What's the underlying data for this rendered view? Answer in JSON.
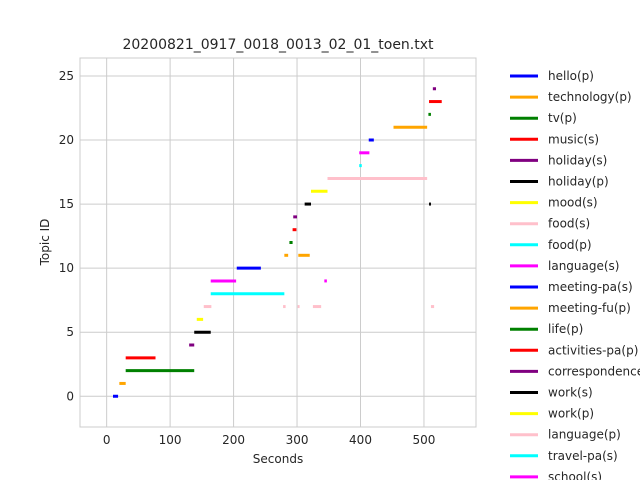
{
  "chart_data": {
    "type": "timeline",
    "title": "20200821_0917_0018_0013_02_01_toen.txt",
    "xlabel": "Seconds",
    "ylabel": "Topic ID",
    "xlim": [
      -42,
      582
    ],
    "ylim": [
      -2.4,
      26.4
    ],
    "xticks": [
      0,
      100,
      200,
      300,
      400,
      500
    ],
    "yticks": [
      0,
      5,
      10,
      15,
      20,
      25
    ],
    "grid": true,
    "legend_position": "right-outside",
    "series": [
      {
        "name": "hello(p)",
        "color": "#0000ff",
        "y": 0,
        "segments": [
          [
            10,
            18
          ]
        ]
      },
      {
        "name": "technology(p)",
        "color": "#ffa500",
        "y": 1,
        "segments": [
          [
            20,
            30
          ]
        ]
      },
      {
        "name": "tv(p)",
        "color": "#008000",
        "y": 2,
        "segments": [
          [
            30,
            138
          ]
        ]
      },
      {
        "name": "music(s)",
        "color": "#ff0000",
        "y": 3,
        "segments": [
          [
            30,
            77
          ]
        ]
      },
      {
        "name": "holiday(s)",
        "color": "#800080",
        "y": 4,
        "segments": [
          [
            130,
            138
          ]
        ]
      },
      {
        "name": "holiday(p)",
        "color": "#000000",
        "y": 5,
        "segments": [
          [
            138,
            164
          ]
        ]
      },
      {
        "name": "mood(s)",
        "color": "#ffff00",
        "y": 6,
        "segments": [
          [
            142,
            152
          ]
        ]
      },
      {
        "name": "food(s)",
        "color": "#ffc0cb",
        "y": 7,
        "segments": [
          [
            153,
            165
          ],
          [
            278,
            282
          ],
          [
            301,
            304
          ],
          [
            325,
            338
          ],
          [
            511,
            516
          ]
        ]
      },
      {
        "name": "food(p)",
        "color": "#00ffff",
        "y": 8,
        "segments": [
          [
            164,
            280
          ]
        ]
      },
      {
        "name": "language(s)",
        "color": "#ff00ff",
        "y": 9,
        "segments": [
          [
            164,
            204
          ],
          [
            343,
            347
          ]
        ]
      },
      {
        "name": "meeting-pa(s)",
        "color": "#0000ff",
        "y": 10,
        "segments": [
          [
            205,
            243
          ]
        ]
      },
      {
        "name": "meeting-fu(p)",
        "color": "#ffa500",
        "y": 11,
        "segments": [
          [
            280,
            286
          ],
          [
            302,
            320
          ]
        ]
      },
      {
        "name": "life(p)",
        "color": "#008000",
        "y": 12,
        "segments": [
          [
            288,
            293
          ]
        ]
      },
      {
        "name": "activities-pa(p)",
        "color": "#ff0000",
        "y": 13,
        "segments": [
          [
            293,
            299
          ]
        ]
      },
      {
        "name": "correspondence",
        "color": "#800080",
        "y": 14,
        "segments": [
          [
            294,
            300
          ]
        ]
      },
      {
        "name": "work(s)",
        "color": "#000000",
        "y": 15,
        "segments": [
          [
            312,
            322
          ],
          [
            508,
            511
          ]
        ]
      },
      {
        "name": "work(p)",
        "color": "#ffff00",
        "y": 16,
        "segments": [
          [
            322,
            348
          ]
        ]
      },
      {
        "name": "language(p)",
        "color": "#ffc0cb",
        "y": 17,
        "segments": [
          [
            348,
            505
          ]
        ]
      },
      {
        "name": "travel-pa(s)",
        "color": "#00ffff",
        "y": 18,
        "segments": [
          [
            398,
            402
          ]
        ]
      },
      {
        "name": "school(s)",
        "color": "#ff00ff",
        "y": 19,
        "segments": [
          [
            398,
            414
          ]
        ]
      },
      {
        "name": "",
        "color": "#0000ff",
        "y": 20,
        "segments": [
          [
            413,
            421
          ]
        ]
      },
      {
        "name": "",
        "color": "#ffa500",
        "y": 21,
        "segments": [
          [
            452,
            505
          ]
        ]
      },
      {
        "name": "",
        "color": "#008000",
        "y": 22,
        "segments": [
          [
            507,
            511
          ]
        ]
      },
      {
        "name": "",
        "color": "#ff0000",
        "y": 23,
        "segments": [
          [
            508,
            528
          ]
        ]
      },
      {
        "name": "",
        "color": "#800080",
        "y": 24,
        "segments": [
          [
            514,
            519
          ]
        ]
      }
    ]
  }
}
